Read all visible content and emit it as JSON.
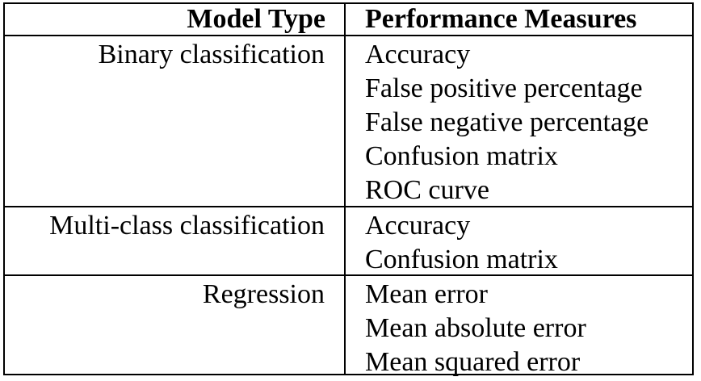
{
  "table": {
    "headers": {
      "model_type": "Model Type",
      "performance_measures": "Performance Measures"
    },
    "rows": [
      {
        "model_type": "Binary classification",
        "measures": [
          "Accuracy",
          "False positive percentage",
          "False negative percentage",
          "Confusion matrix",
          "ROC curve"
        ]
      },
      {
        "model_type": "Multi-class classification",
        "measures": [
          "Accuracy",
          "Confusion matrix"
        ]
      },
      {
        "model_type": "Regression",
        "measures": [
          "Mean error",
          "Mean absolute error",
          "Mean squared error"
        ]
      }
    ]
  }
}
